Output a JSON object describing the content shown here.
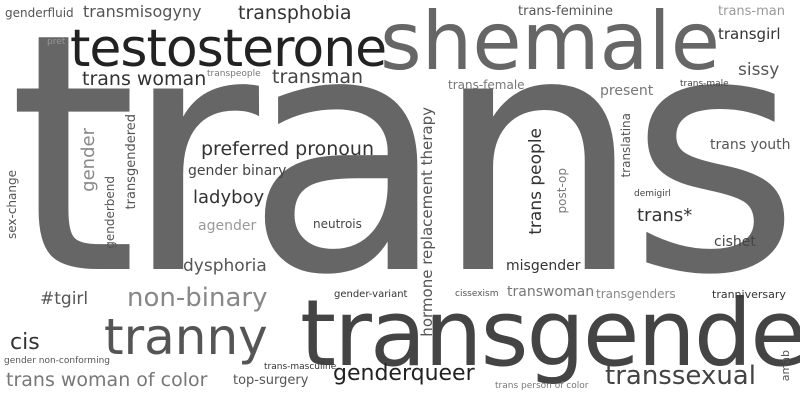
{
  "words": {
    "trans": "trans",
    "transgender": "transgender",
    "shemale": "shemale",
    "testosterone": "testosterone",
    "tranny": "tranny",
    "trans_woman": "trans woman",
    "transman": "transman",
    "transphobia": "transphobia",
    "transmisogyny": "transmisogyny",
    "genderfluid": "genderfluid",
    "pret": "pret",
    "transpeople": "transpeople",
    "trans_feminine": "trans-feminine",
    "trans_man": "trans-man",
    "transgirl": "transgirl",
    "sissy": "sissy",
    "trans_female": "trans-female",
    "present": "present",
    "trans_male": "trans-male",
    "trans_youth": "trans youth",
    "translatina": "translatina",
    "demigirl": "demigirl",
    "trans_star": "trans*",
    "cishet": "cishet",
    "preferred_pronoun": "preferred pronoun",
    "gender_binary": "gender binary",
    "ladyboy": "ladyboy",
    "agender": "agender",
    "neutrois": "neutrois",
    "dysphoria": "dysphoria",
    "non_binary": "non-binary",
    "tgirl": "#tgirl",
    "cis": "cis",
    "gender_non_conforming": "gender non-conforming",
    "trans_woman_of_color": "trans woman of color",
    "top_surgery": "top-surgery",
    "trans_masculine": "trans-masculine",
    "genderqueer": "genderqueer",
    "gender_variant": "gender-variant",
    "cissexism": "cissexism",
    "transwoman": "transwoman",
    "transgenders": "transgenders",
    "tranniversary": "tranniversary",
    "misgender": "misgender",
    "transsexual": "transsexual",
    "trans_person_of_color": "trans person of color",
    "amab": "amab",
    "sex_change": "sex-change",
    "gender": "gender",
    "genderbend": "genderbend",
    "transgendered": "transgendered",
    "hormone_replacement_therapy": "hormone replacement therapy",
    "trans_people": "trans people",
    "post_op": "post-op"
  },
  "colors": {
    "background": "#ffffff",
    "darkest": "#222222",
    "dark": "#444444",
    "mid": "#666666",
    "light": "#999999"
  }
}
